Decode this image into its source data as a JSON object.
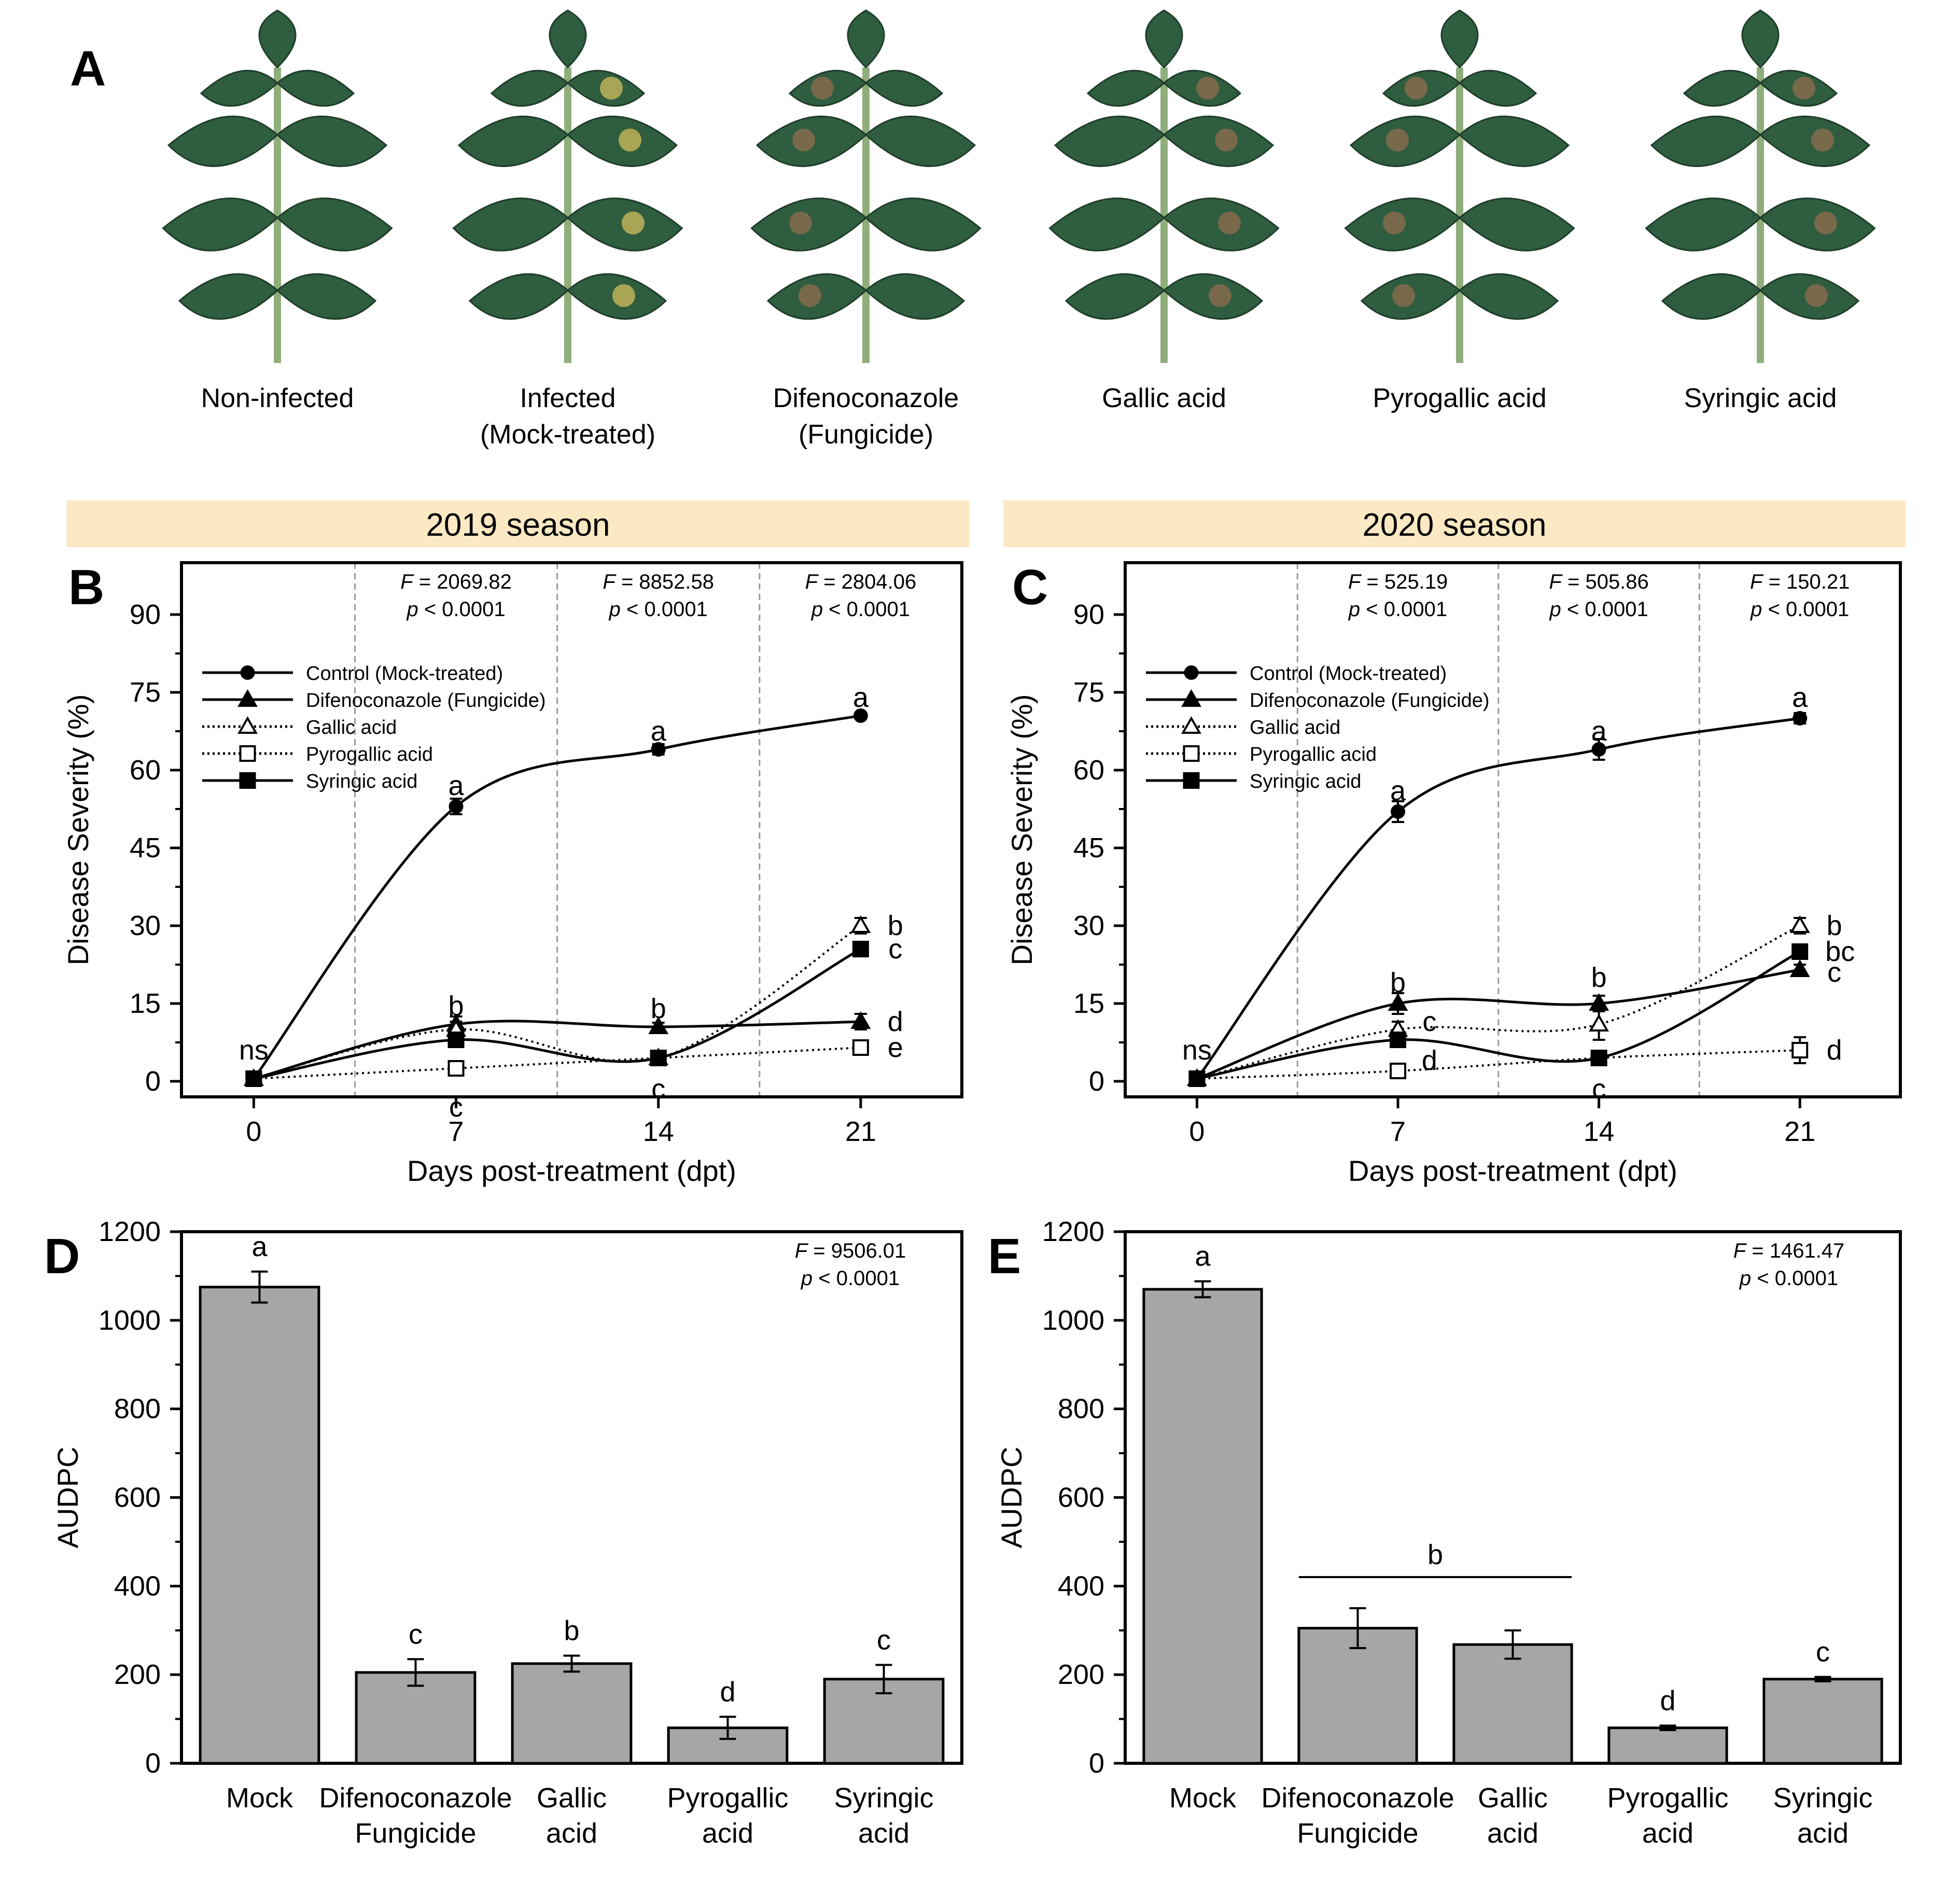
{
  "panel_a": {
    "label": "A",
    "photos": [
      {
        "label_lines": [
          "Non-infected"
        ]
      },
      {
        "label_lines": [
          "Infected",
          "(Mock-treated)"
        ]
      },
      {
        "label_lines": [
          "Difenoconazole",
          "(Fungicide)"
        ]
      },
      {
        "label_lines": [
          "Gallic acid"
        ]
      },
      {
        "label_lines": [
          "Pyrogallic acid"
        ]
      },
      {
        "label_lines": [
          "Syringic acid"
        ]
      }
    ]
  },
  "seasons": [
    "2019 season",
    "2020 season"
  ],
  "colors": {
    "banner": "#FBE9C3",
    "bar": "#A6A6A6",
    "text": "#000000",
    "leaf": "#2f5d3f"
  },
  "chart_data": [
    {
      "panel": "B",
      "type": "line",
      "x": [
        0,
        7,
        14,
        21
      ],
      "xticks": [
        "0",
        "7",
        "14",
        "21"
      ],
      "xlabel": "Days post-treatment (dpt)",
      "ylabel": "Disease Severity (%)",
      "ylim": [
        -3,
        100
      ],
      "yticks": [
        "0",
        "15",
        "30",
        "45",
        "60",
        "75",
        "90"
      ],
      "stats": [
        {
          "f_label": "F",
          "f_value": "= 2069.82",
          "p_label": "p",
          "p_value": "< 0.0001"
        },
        {
          "f_label": "F",
          "f_value": "= 8852.58",
          "p_label": "p",
          "p_value": "< 0.0001"
        },
        {
          "f_label": "F",
          "f_value": "= 2804.06",
          "p_label": "p",
          "p_value": "< 0.0001"
        }
      ],
      "series": [
        {
          "name": "Control (Mock-treated)",
          "marker": "circle",
          "line": "solid",
          "values": [
            0.5,
            53,
            64,
            70.5
          ],
          "err": [
            0,
            1.5,
            1.0,
            0.5
          ]
        },
        {
          "name": "Difenoconazole (Fungicide)",
          "marker": "triangle",
          "line": "solid",
          "values": [
            0.5,
            11,
            10.5,
            11.5
          ],
          "err": [
            0,
            1.5,
            0.8,
            1.5
          ]
        },
        {
          "name": "Gallic acid",
          "marker": "triangle-open",
          "line": "dotted",
          "values": [
            0.5,
            10,
            4.5,
            30
          ],
          "err": [
            0,
            1.5,
            0.8,
            1.5
          ]
        },
        {
          "name": "Pyrogallic acid",
          "marker": "square-open",
          "line": "dotted",
          "values": [
            0.5,
            2.5,
            4.5,
            6.5
          ],
          "err": [
            0,
            0.5,
            0.5,
            0.8
          ]
        },
        {
          "name": "Syringic acid",
          "marker": "square",
          "line": "solid",
          "values": [
            0.5,
            8,
            4.5,
            25.5
          ],
          "err": [
            0,
            1.0,
            0.8,
            1.0
          ]
        }
      ],
      "annotations": [
        {
          "text": "ns",
          "x": 0,
          "y": 6
        },
        {
          "text": "a",
          "x": 7,
          "y": 57
        },
        {
          "text": "b",
          "x": 7,
          "y": 14.5
        },
        {
          "text": "c",
          "x": 7,
          "y": -5
        },
        {
          "text": "a",
          "x": 14,
          "y": 67.5
        },
        {
          "text": "b",
          "x": 14,
          "y": 14
        },
        {
          "text": "c",
          "x": 14,
          "y": -1.5
        },
        {
          "text": "a",
          "x": 21,
          "y": 74
        },
        {
          "text": "b",
          "x": 22.2,
          "y": 30
        },
        {
          "text": "c",
          "x": 22.2,
          "y": 25.5
        },
        {
          "text": "d",
          "x": 22.2,
          "y": 11.5
        },
        {
          "text": "e",
          "x": 22.2,
          "y": 6.5
        }
      ]
    },
    {
      "panel": "C",
      "type": "line",
      "x": [
        0,
        7,
        14,
        21
      ],
      "xticks": [
        "0",
        "7",
        "14",
        "21"
      ],
      "xlabel": "Days post-treatment (dpt)",
      "ylabel": "Disease Severity (%)",
      "ylim": [
        -3,
        100
      ],
      "yticks": [
        "0",
        "15",
        "30",
        "45",
        "60",
        "75",
        "90"
      ],
      "stats": [
        {
          "f_label": "F",
          "f_value": "= 525.19",
          "p_label": "p",
          "p_value": "< 0.0001"
        },
        {
          "f_label": "F",
          "f_value": "= 505.86",
          "p_label": "p",
          "p_value": "< 0.0001"
        },
        {
          "f_label": "F",
          "f_value": "= 150.21",
          "p_label": "p",
          "p_value": "< 0.0001"
        }
      ],
      "series": [
        {
          "name": "Control (Mock-treated)",
          "marker": "circle",
          "line": "solid",
          "values": [
            0.5,
            52,
            64,
            70
          ],
          "err": [
            0,
            2.0,
            2.0,
            1.0
          ]
        },
        {
          "name": "Difenoconazole (Fungicide)",
          "marker": "triangle",
          "line": "solid",
          "values": [
            0.5,
            15,
            15,
            21.5
          ],
          "err": [
            0,
            2.0,
            1.5,
            1.0
          ]
        },
        {
          "name": "Gallic acid",
          "marker": "triangle-open",
          "line": "dotted",
          "values": [
            0.5,
            10,
            11,
            30
          ],
          "err": [
            0,
            1.5,
            3.0,
            1.5
          ]
        },
        {
          "name": "Pyrogallic acid",
          "marker": "square-open",
          "line": "dotted",
          "values": [
            0.5,
            2,
            4.5,
            6
          ],
          "err": [
            0,
            0.5,
            0.5,
            2.5
          ]
        },
        {
          "name": "Syringic acid",
          "marker": "square",
          "line": "solid",
          "values": [
            0.5,
            8,
            4.5,
            25
          ],
          "err": [
            0,
            1.0,
            1.0,
            1.0
          ]
        }
      ],
      "annotations": [
        {
          "text": "ns",
          "x": 0,
          "y": 6
        },
        {
          "text": "a",
          "x": 7,
          "y": 56
        },
        {
          "text": "b",
          "x": 7,
          "y": 19
        },
        {
          "text": "c",
          "x": 8.1,
          "y": 11.5
        },
        {
          "text": "d",
          "x": 8.1,
          "y": 4
        },
        {
          "text": "a",
          "x": 14,
          "y": 67.5
        },
        {
          "text": "b",
          "x": 14,
          "y": 20
        },
        {
          "text": "c",
          "x": 14,
          "y": -1.5
        },
        {
          "text": "a",
          "x": 21,
          "y": 74
        },
        {
          "text": "b",
          "x": 22.2,
          "y": 30
        },
        {
          "text": "bc",
          "x": 22.4,
          "y": 25
        },
        {
          "text": "c",
          "x": 22.2,
          "y": 21
        },
        {
          "text": "d",
          "x": 22.2,
          "y": 6
        }
      ]
    },
    {
      "panel": "D",
      "type": "bar",
      "categories": [
        [
          "Mock"
        ],
        [
          "Difenoconazole",
          "Fungicide"
        ],
        [
          "Gallic",
          "acid"
        ],
        [
          "Pyrogallic",
          "acid"
        ],
        [
          "Syringic",
          "acid"
        ]
      ],
      "values": [
        1075,
        205,
        225,
        80,
        190
      ],
      "err": [
        35,
        30,
        18,
        25,
        32
      ],
      "letters": [
        "a",
        "c",
        "b",
        "d",
        "c"
      ],
      "ylabel": "AUDPC",
      "ylim": [
        0,
        1200
      ],
      "yticks": [
        "0",
        "200",
        "400",
        "600",
        "800",
        "1000",
        "1200"
      ],
      "stats": {
        "f_label": "F",
        "f_value": "= 9506.01",
        "p_label": "p",
        "p_value": "< 0.0001"
      }
    },
    {
      "panel": "E",
      "type": "bar",
      "categories": [
        [
          "Mock"
        ],
        [
          "Difenoconazole",
          "Fungicide"
        ],
        [
          "Gallic",
          "acid"
        ],
        [
          "Pyrogallic",
          "acid"
        ],
        [
          "Syringic",
          "acid"
        ]
      ],
      "values": [
        1070,
        305,
        268,
        80,
        190
      ],
      "err": [
        18,
        45,
        32,
        5,
        5
      ],
      "letters": [
        "a",
        "",
        "",
        "d",
        "c"
      ],
      "group_letter": "b",
      "ylabel": "AUDPC",
      "ylim": [
        0,
        1200
      ],
      "yticks": [
        "0",
        "200",
        "400",
        "600",
        "800",
        "1000",
        "1200"
      ],
      "stats": {
        "f_label": "F",
        "f_value": "= 1461.47",
        "p_label": "p",
        "p_value": "< 0.0001"
      }
    }
  ]
}
